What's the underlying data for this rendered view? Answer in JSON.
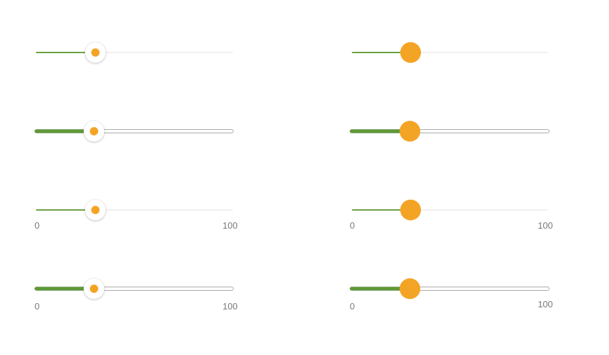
{
  "colors": {
    "fill": "#6a9f3e",
    "handle": "#f4a424",
    "track_thin": "#f0f0f0",
    "track_border": "#a9a9a9",
    "tick_text": "#777777"
  },
  "sliders": {
    "left_1": {
      "value": 30,
      "min": 0,
      "max": 100
    },
    "right_1": {
      "value": 30,
      "min": 0,
      "max": 100
    },
    "left_2": {
      "value": 30,
      "min": 0,
      "max": 100
    },
    "right_2": {
      "value": 30,
      "min": 0,
      "max": 100
    },
    "left_3": {
      "value": 30,
      "min": 0,
      "max": 100,
      "min_label": "0",
      "max_label": "100"
    },
    "right_3": {
      "value": 30,
      "min": 0,
      "max": 100,
      "min_label": "0",
      "max_label": "100"
    },
    "left_4": {
      "value": 30,
      "min": 0,
      "max": 100,
      "min_label": "0",
      "max_label": "100"
    },
    "right_4": {
      "value": 30,
      "min": 0,
      "max": 100,
      "min_label": "0",
      "max_label": "100"
    }
  }
}
